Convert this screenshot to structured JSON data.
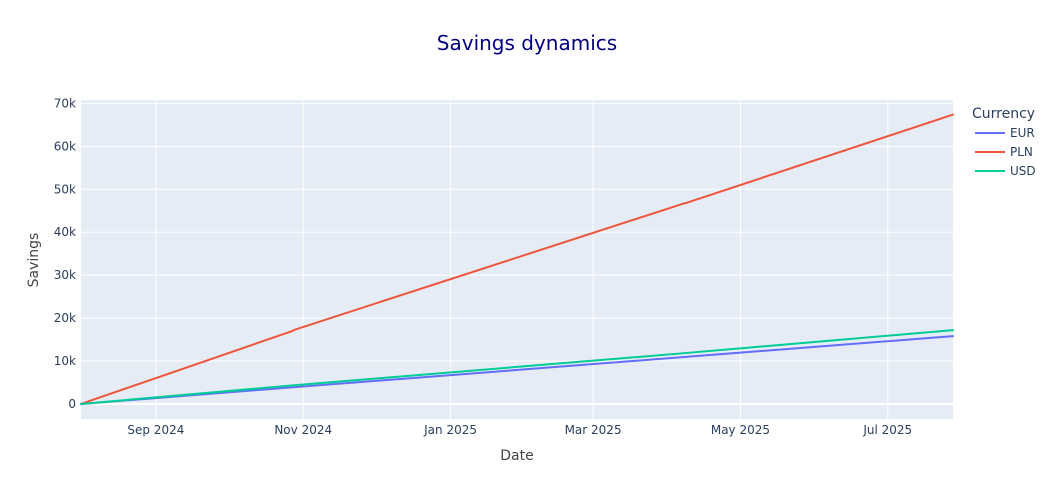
{
  "chart_data": {
    "type": "line",
    "title": "Savings dynamics",
    "xlabel": "Date",
    "ylabel": "Savings",
    "x_range": [
      "2024-08-01",
      "2025-07-28"
    ],
    "y_range": [
      -3500,
      70800
    ],
    "x_ticks": [
      {
        "date": "2024-09-01",
        "label": "Sep 2024"
      },
      {
        "date": "2024-11-01",
        "label": "Nov 2024"
      },
      {
        "date": "2025-01-01",
        "label": "Jan 2025"
      },
      {
        "date": "2025-03-01",
        "label": "Mar 2025"
      },
      {
        "date": "2025-05-01",
        "label": "May 2025"
      },
      {
        "date": "2025-07-01",
        "label": "Jul 2025"
      }
    ],
    "y_ticks": [
      {
        "value": 0,
        "label": "0"
      },
      {
        "value": 10000,
        "label": "10k"
      },
      {
        "value": 20000,
        "label": "20k"
      },
      {
        "value": 30000,
        "label": "30k"
      },
      {
        "value": 40000,
        "label": "40k"
      },
      {
        "value": 50000,
        "label": "50k"
      },
      {
        "value": 60000,
        "label": "60k"
      },
      {
        "value": 70000,
        "label": "70k"
      }
    ],
    "grid": true,
    "legend_title": "Currency",
    "legend_position": "right",
    "series": [
      {
        "name": "EUR",
        "color": "#636efa",
        "points": [
          {
            "x": "2024-08-01",
            "y": 0
          },
          {
            "x": "2024-10-27",
            "y": 3850
          },
          {
            "x": "2025-04-07",
            "y": 10900
          },
          {
            "x": "2025-07-28",
            "y": 15800
          }
        ]
      },
      {
        "name": "PLN",
        "color": "#ef553b",
        "points": [
          {
            "x": "2024-08-01",
            "y": 0
          },
          {
            "x": "2024-10-27",
            "y": 16900
          },
          {
            "x": "2024-10-29",
            "y": 17400
          },
          {
            "x": "2025-04-07",
            "y": 46600
          },
          {
            "x": "2025-04-09",
            "y": 46900
          },
          {
            "x": "2025-07-28",
            "y": 67400
          }
        ]
      },
      {
        "name": "USD",
        "color": "#00cc96",
        "points": [
          {
            "x": "2024-08-01",
            "y": 0
          },
          {
            "x": "2024-10-27",
            "y": 4300
          },
          {
            "x": "2025-04-07",
            "y": 11800
          },
          {
            "x": "2025-07-28",
            "y": 17200
          }
        ]
      }
    ]
  }
}
